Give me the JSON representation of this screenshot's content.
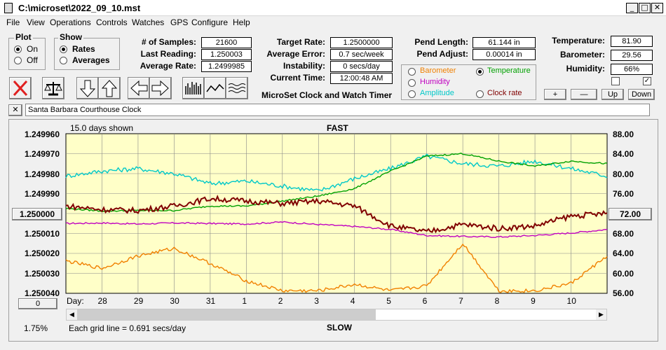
{
  "window": {
    "title": "C:\\microset\\2022_09_10.mst"
  },
  "menu": [
    "File",
    "View",
    "Operations",
    "Controls",
    "Watches",
    "GPS",
    "Configure",
    "Help"
  ],
  "plot_group": {
    "title": "Plot",
    "on": "On",
    "off": "Off",
    "selected": "On"
  },
  "show_group": {
    "title": "Show",
    "rates": "Rates",
    "averages": "Averages",
    "selected": "Rates"
  },
  "stats": {
    "samples_label": "# of Samples:",
    "samples": "21600",
    "last_label": "Last Reading:",
    "last": "1.250003",
    "avg_label": "Average Rate:",
    "avg": "1.2499985",
    "target_label": "Target Rate:",
    "target": "1.2500000",
    "err_label": "Average Error:",
    "err": "0.7 sec/week",
    "inst_label": "Instability:",
    "inst": "0 secs/day",
    "time_label": "Current Time:",
    "time": "12:00:48 AM",
    "pendlen_label": "Pend Length:",
    "pendlen": "61.144 in",
    "pendadj_label": "Pend Adjust:",
    "pendadj": "0.00014 in",
    "temp_label": "Temperature:",
    "temp": "81.90",
    "baro_label": "Barometer:",
    "baro": "29.56",
    "hum_label": "Humidity:",
    "hum": "66%"
  },
  "app_name": "MicroSet Clock and Watch Timer",
  "sensor_options": {
    "barometer": "Barometer",
    "temperature": "Temperature",
    "humidity": "Humidity",
    "amplitude": "Amplitude",
    "clock_rate": "Clock rate",
    "selected": "Temperature",
    "colors": {
      "barometer": "#f08000",
      "temperature": "#00a000",
      "humidity": "#c000c0",
      "amplitude": "#00c8c8",
      "clock_rate": "#800000"
    }
  },
  "adjust_buttons": {
    "plus": "+",
    "minus": "—",
    "up": "Up",
    "down": "Down"
  },
  "clock_name": "Santa Barbara Courthouse Clock",
  "chart_header": {
    "days_shown": "15.0 days shown",
    "fast": "FAST",
    "slow": "SLOW",
    "grid_note": "Each grid line = 0.691 secs/day",
    "percent": "1.75%",
    "day_label": "Day:"
  },
  "center_left_button": "1.250000",
  "center_right_button": "72.00",
  "zero_button": "0",
  "chart_data": {
    "type": "line",
    "left_ticks": [
      "1.249960",
      "1.249970",
      "1.249980",
      "1.249990",
      "1.250000",
      "1.250010",
      "1.250020",
      "1.250030",
      "1.250040"
    ],
    "right_ticks": [
      "88.00",
      "84.00",
      "80.00",
      "76.00",
      "72.00",
      "68.00",
      "64.00",
      "60.00",
      "56.00"
    ],
    "x_ticks": [
      "28",
      "29",
      "30",
      "31",
      "1",
      "2",
      "3",
      "4",
      "5",
      "6",
      "7",
      "8",
      "9",
      "10"
    ],
    "xlim": [
      0,
      15
    ],
    "ylim": [
      56,
      88
    ],
    "grid": true,
    "series": [
      {
        "color": "#c000c0",
        "x": [
          0,
          1,
          2,
          3,
          4,
          5,
          6,
          7,
          8,
          9,
          10,
          11,
          12,
          13,
          14,
          15
        ],
        "values": [
          70.0,
          70.1,
          69.9,
          70.1,
          70.0,
          69.9,
          70.3,
          69.8,
          69.4,
          68.8,
          67.6,
          67.4,
          67.3,
          67.6,
          68.1,
          68.8
        ]
      },
      {
        "color": "#00c8c8",
        "x": [
          0,
          1,
          2,
          3,
          4,
          5,
          6,
          7,
          8,
          9,
          10,
          11,
          12,
          13,
          14,
          15
        ],
        "values": [
          79.5,
          80.5,
          81.0,
          80.0,
          78.0,
          78.5,
          77.5,
          76.5,
          79.0,
          81.0,
          83.5,
          82.0,
          81.5,
          82.5,
          81.0,
          79.5
        ]
      },
      {
        "color": "#00a000",
        "x": [
          0,
          1,
          2,
          3,
          4,
          5,
          6,
          7,
          8,
          9,
          10,
          11,
          12,
          13,
          14,
          15
        ],
        "values": [
          73.0,
          72.5,
          72.6,
          72.6,
          73.5,
          73.5,
          74.5,
          75.5,
          77.0,
          80.5,
          83.5,
          84.0,
          82.5,
          81.5,
          82.5,
          82.0
        ]
      },
      {
        "color": "#800000",
        "x": [
          0,
          1,
          2,
          3,
          4,
          5,
          6,
          7,
          8,
          9,
          10,
          11,
          12,
          13,
          14,
          15
        ],
        "values": [
          73.5,
          72.8,
          72.6,
          73.5,
          75.0,
          74.5,
          74.0,
          74.5,
          73.5,
          69.5,
          68.3,
          69.8,
          69.0,
          69.5,
          71.5,
          72.0
        ]
      },
      {
        "color": "#f08000",
        "x": [
          0,
          1,
          2,
          3,
          4,
          5,
          6,
          7,
          8,
          9,
          10,
          11,
          12,
          13,
          14,
          15
        ],
        "values": [
          62.5,
          61.0,
          63.5,
          65.0,
          62.0,
          58.5,
          56.5,
          56.5,
          57.8,
          56.5,
          57.5,
          66.0,
          56.5,
          56.5,
          58.0,
          63.5
        ]
      }
    ]
  }
}
